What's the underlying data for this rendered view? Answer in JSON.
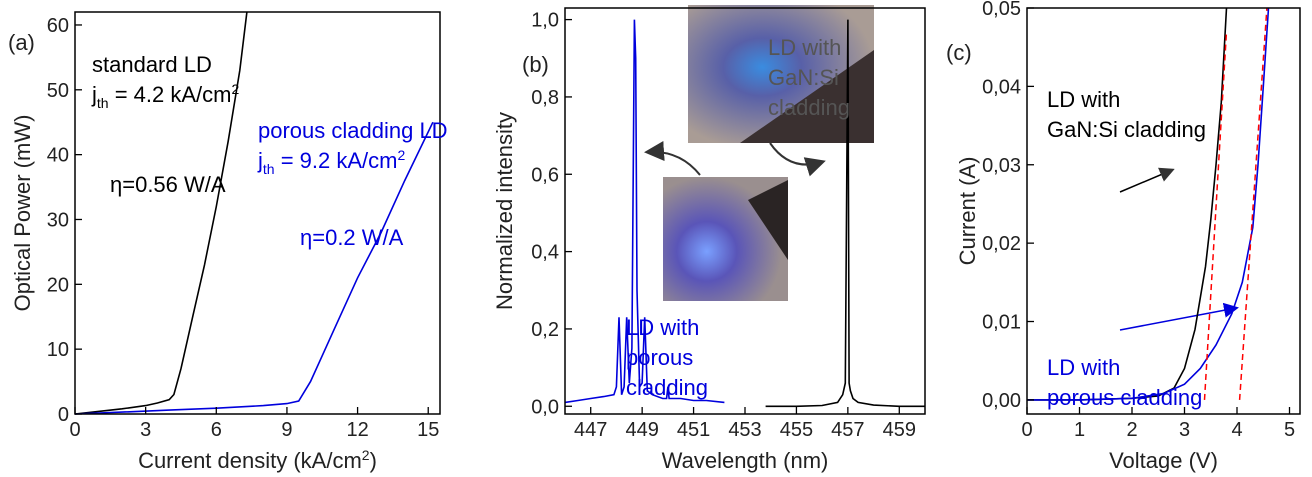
{
  "chart_data": [
    {
      "type": "line",
      "panel_label": "(a)",
      "xlabel": [
        "Current density (kA/cm",
        {
          "sup": "2"
        },
        ")"
      ],
      "ylabel": [
        "Optical Power (mW)"
      ],
      "xlim": [
        0,
        15.5
      ],
      "ylim": [
        0,
        62
      ],
      "xticks": [
        0,
        3,
        6,
        9,
        12,
        15
      ],
      "yticks": [
        0,
        10,
        20,
        30,
        40,
        50,
        60
      ],
      "series": [
        {
          "color": "#000000",
          "x": [
            0,
            1,
            2,
            3,
            3.5,
            4,
            4.2,
            4.5,
            5,
            5.5,
            6,
            6.5,
            7,
            7.3
          ],
          "values": [
            0,
            0.4,
            0.8,
            1.3,
            1.7,
            2.2,
            3,
            7,
            15,
            23,
            32,
            42,
            53,
            62
          ]
        },
        {
          "color": "#0000dd",
          "x": [
            0,
            2,
            4,
            6,
            8,
            9,
            9.5,
            10,
            10.5,
            11,
            12,
            13,
            14,
            15.2
          ],
          "values": [
            0,
            0.3,
            0.6,
            0.9,
            1.3,
            1.6,
            2,
            5,
            9,
            13,
            21,
            28,
            36,
            45
          ]
        }
      ],
      "annotations": [
        {
          "color": "#000000",
          "lines": [
            "standard LD",
            [
              "j",
              {
                "sub": "th"
              },
              " = 4.2 kA/cm",
              {
                "sup": "2"
              }
            ]
          ]
        },
        {
          "color": "#000000",
          "lines": [
            "η=0.56 W/A"
          ]
        },
        {
          "color": "#0000dd",
          "lines": [
            "porous cladding LD",
            [
              "j",
              {
                "sub": "th"
              },
              " = 9.2 kA/cm",
              {
                "sup": "2"
              }
            ]
          ]
        },
        {
          "color": "#0000dd",
          "lines": [
            "η=0.2 W/A"
          ]
        }
      ]
    },
    {
      "type": "line",
      "panel_label": "(b)",
      "xlabel": [
        "Wavelength (nm)"
      ],
      "ylabel": [
        "Normalized intensity"
      ],
      "xlim": [
        446,
        460
      ],
      "ylim": [
        -0.02,
        1.03
      ],
      "xticks": [
        447,
        449,
        451,
        453,
        455,
        457,
        459
      ],
      "yticks": [
        {
          "value": 0,
          "label": "0,0"
        },
        {
          "value": 0.2,
          "label": "0,2"
        },
        {
          "value": 0.4,
          "label": "0,4"
        },
        {
          "value": 0.6,
          "label": "0,6"
        },
        {
          "value": 0.8,
          "label": "0,8"
        },
        {
          "value": 1.0,
          "label": "1,0"
        }
      ],
      "series": [
        {
          "color": "#0000dd",
          "x": [
            446,
            446.5,
            447,
            447.5,
            447.9,
            448.0,
            448.1,
            448.2,
            448.3,
            448.4,
            448.5,
            448.6,
            448.7,
            448.75,
            448.8,
            448.9,
            449.0,
            449.1,
            449.2,
            449.4,
            449.8,
            449.95,
            450.0,
            450.05,
            450.5,
            451,
            451.5,
            452.2
          ],
          "values": [
            0.01,
            0.015,
            0.02,
            0.025,
            0.03,
            0.05,
            0.23,
            0.03,
            0.05,
            0.23,
            0.06,
            0.15,
            1.0,
            0.9,
            0.3,
            0.05,
            0.06,
            0.23,
            0.04,
            0.03,
            0.02,
            0.02,
            0.05,
            0.02,
            0.02,
            0.015,
            0.015,
            0.01
          ]
        },
        {
          "color": "#000000",
          "x": [
            453.8,
            455,
            456,
            456.6,
            456.8,
            456.9,
            457.0,
            457.05,
            457.1,
            457.2,
            457.4,
            458,
            459,
            460
          ],
          "values": [
            0.0,
            0.0,
            0.002,
            0.01,
            0.03,
            0.06,
            1.0,
            0.06,
            0.04,
            0.02,
            0.01,
            0.003,
            0.0,
            0.0
          ]
        }
      ],
      "annotations": [
        {
          "color": "#555555",
          "lines": [
            "LD with",
            "GaN:Si",
            "cladding"
          ]
        },
        {
          "color": "#0000dd",
          "lines": [
            "LD with",
            "porous",
            "cladding"
          ]
        }
      ]
    },
    {
      "type": "line",
      "panel_label": "(c)",
      "xlabel": [
        "Voltage (V)"
      ],
      "ylabel": [
        "Current (A)"
      ],
      "xlim": [
        0,
        5.2
      ],
      "ylim": [
        -0.0018,
        0.05
      ],
      "xticks": [
        0,
        1,
        2,
        3,
        4,
        5
      ],
      "yticks": [
        {
          "value": 0,
          "label": "0,00"
        },
        {
          "value": 0.01,
          "label": "0,01"
        },
        {
          "value": 0.02,
          "label": "0,02"
        },
        {
          "value": 0.03,
          "label": "0,03"
        },
        {
          "value": 0.04,
          "label": "0,04"
        },
        {
          "value": 0.05,
          "label": "0,05"
        }
      ],
      "series": [
        {
          "color": "#000000",
          "x": [
            0,
            1,
            2,
            2.5,
            2.8,
            3.0,
            3.2,
            3.4,
            3.5,
            3.6,
            3.7,
            3.8
          ],
          "values": [
            0,
            0,
            0.0002,
            0.0005,
            0.0015,
            0.004,
            0.009,
            0.017,
            0.023,
            0.03,
            0.038,
            0.05
          ]
        },
        {
          "color": "#0000dd",
          "x": [
            0,
            1,
            2,
            2.6,
            3,
            3.3,
            3.6,
            3.9,
            4.1,
            4.3,
            4.4,
            4.5,
            4.6
          ],
          "values": [
            0,
            0,
            0.0002,
            0.0008,
            0.002,
            0.004,
            0.007,
            0.011,
            0.015,
            0.022,
            0.03,
            0.04,
            0.05
          ]
        },
        {
          "color": "#ff0000",
          "dash": true,
          "x": [
            3.38,
            3.8
          ],
          "values": [
            0,
            0.047
          ]
        },
        {
          "color": "#ff0000",
          "dash": true,
          "x": [
            4.05,
            4.57
          ],
          "values": [
            0,
            0.05
          ]
        }
      ],
      "annotations": [
        {
          "color": "#000000",
          "lines": [
            "LD with",
            "GaN:Si cladding"
          ]
        },
        {
          "color": "#0000dd",
          "lines": [
            "LD with",
            "porous cladding"
          ]
        }
      ]
    }
  ]
}
